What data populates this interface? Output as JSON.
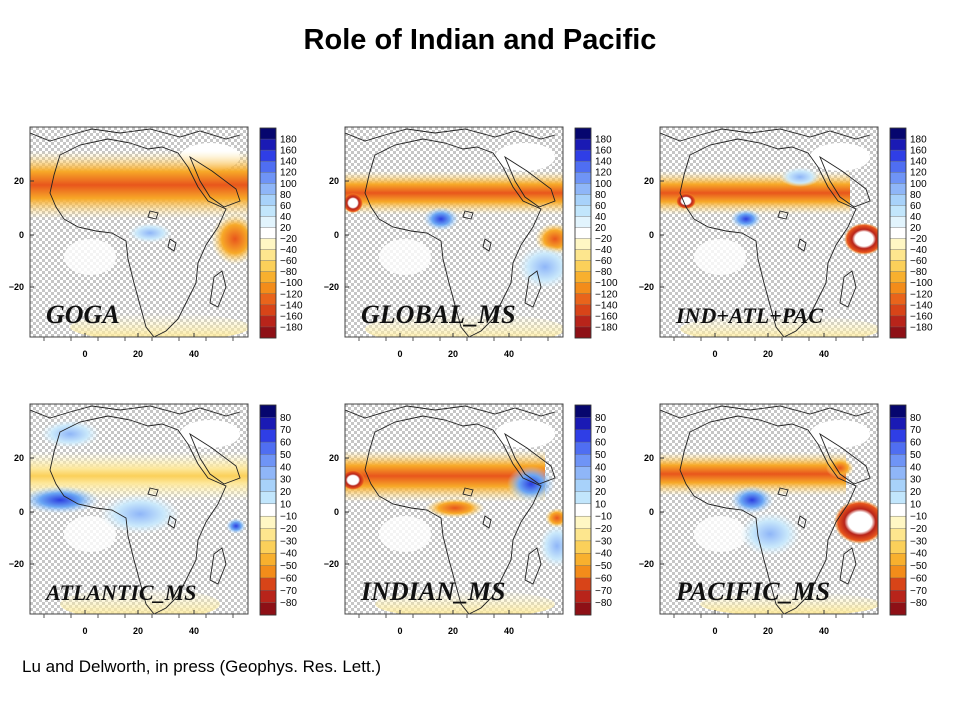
{
  "title": "Role of Indian and Pacific",
  "caption": "Lu and Delworth, in press (Geophys. Res. Lett.)",
  "axes": {
    "lon_ticks": [
      "0",
      "20",
      "40"
    ],
    "lat_ticks": [
      "20",
      "0",
      "−20"
    ]
  },
  "colorbars": {
    "top": {
      "ticks": [
        "180",
        "160",
        "140",
        "120",
        "100",
        "80",
        "60",
        "40",
        "20",
        "−20",
        "−40",
        "−60",
        "−80",
        "−100",
        "−120",
        "−140",
        "−160",
        "−180"
      ],
      "colors": [
        "#06066e",
        "#1a1ab4",
        "#2f3ee6",
        "#4f6ef2",
        "#6f94f6",
        "#8fb6f8",
        "#a8d2fa",
        "#c2e6fc",
        "#e2f4fd",
        "#ffffff",
        "#fff7c4",
        "#fde68e",
        "#fbd05a",
        "#f8b02e",
        "#f38c1a",
        "#e9641b",
        "#d84418",
        "#b8241a",
        "#8e1016"
      ]
    },
    "bottom": {
      "ticks": [
        "80",
        "70",
        "60",
        "50",
        "40",
        "30",
        "20",
        "10",
        "−10",
        "−20",
        "−30",
        "−40",
        "−50",
        "−60",
        "−70",
        "−80"
      ],
      "colors": [
        "#06066e",
        "#1a1ab4",
        "#2f3ee6",
        "#4f6ef2",
        "#6f94f6",
        "#8fb6f8",
        "#a8d2fa",
        "#c2e6fc",
        "#ffffff",
        "#fff7c4",
        "#fde68e",
        "#fbd05a",
        "#f8b02e",
        "#f38c1a",
        "#d84418",
        "#b8241a",
        "#8e1016"
      ]
    }
  },
  "panels": [
    {
      "label": "GOGA"
    },
    {
      "label": "GLOBAL_MS"
    },
    {
      "label": "IND+ATL+PAC"
    },
    {
      "label": "ATLANTIC_MS"
    },
    {
      "label": "INDIAN_MS"
    },
    {
      "label": "PACIFIC_MS"
    }
  ],
  "colors": {
    "warm_strong": "#e8561c",
    "warm_mid": "#f7a928",
    "warm_light": "#fde79a",
    "cool_strong": "#2b3ee0",
    "cool_mid": "#6aa6f4",
    "cool_light": "#c9e8fb",
    "stipple": "#bdbdbd"
  }
}
